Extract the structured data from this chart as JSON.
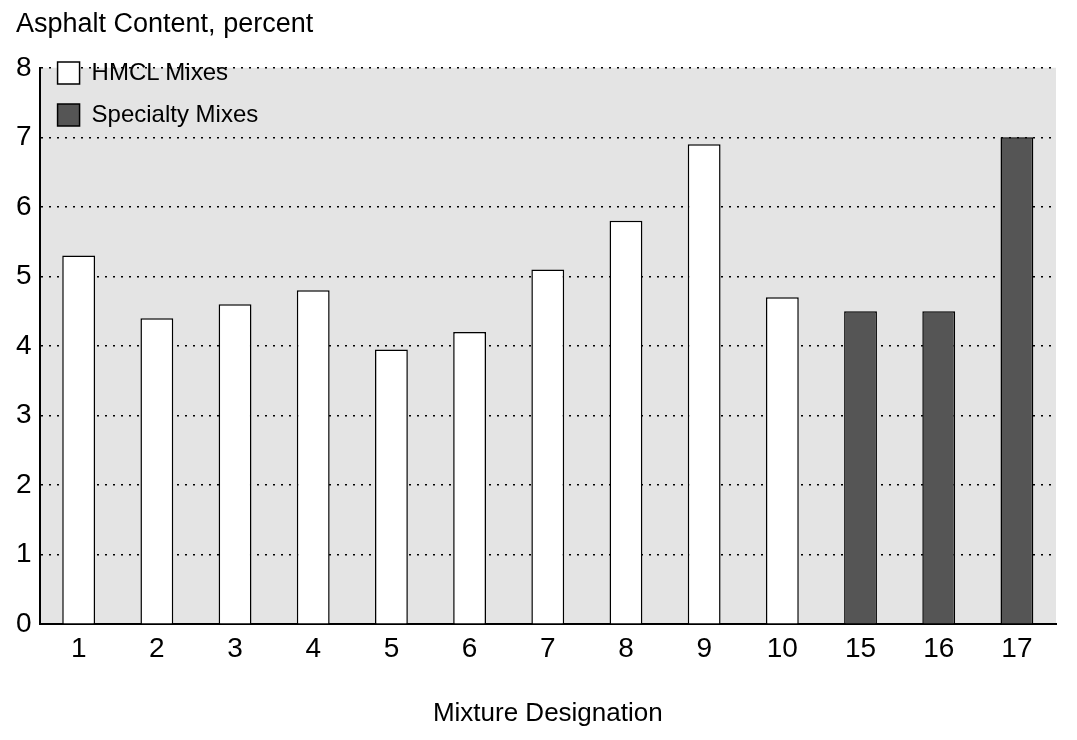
{
  "chart_data": {
    "type": "bar",
    "ylabel": "Asphalt Content, percent",
    "xlabel": "Mixture Designation",
    "categories": [
      "1",
      "2",
      "3",
      "4",
      "5",
      "6",
      "7",
      "8",
      "9",
      "10",
      "15",
      "16",
      "17"
    ],
    "series": [
      {
        "name": "HMCL Mixes",
        "color": "#ffffff",
        "values": [
          5.3,
          4.4,
          4.6,
          4.8,
          3.95,
          4.2,
          5.1,
          5.8,
          6.9,
          4.7,
          null,
          null,
          null
        ]
      },
      {
        "name": "Specialty Mixes",
        "color": "#555555",
        "values": [
          null,
          null,
          null,
          null,
          null,
          null,
          null,
          null,
          null,
          null,
          4.5,
          4.5,
          7.0
        ]
      }
    ],
    "ylim": [
      0,
      8
    ],
    "yticks": [
      0,
      1,
      2,
      3,
      4,
      5,
      6,
      7,
      8
    ],
    "grid": "y",
    "legend": "top left"
  }
}
